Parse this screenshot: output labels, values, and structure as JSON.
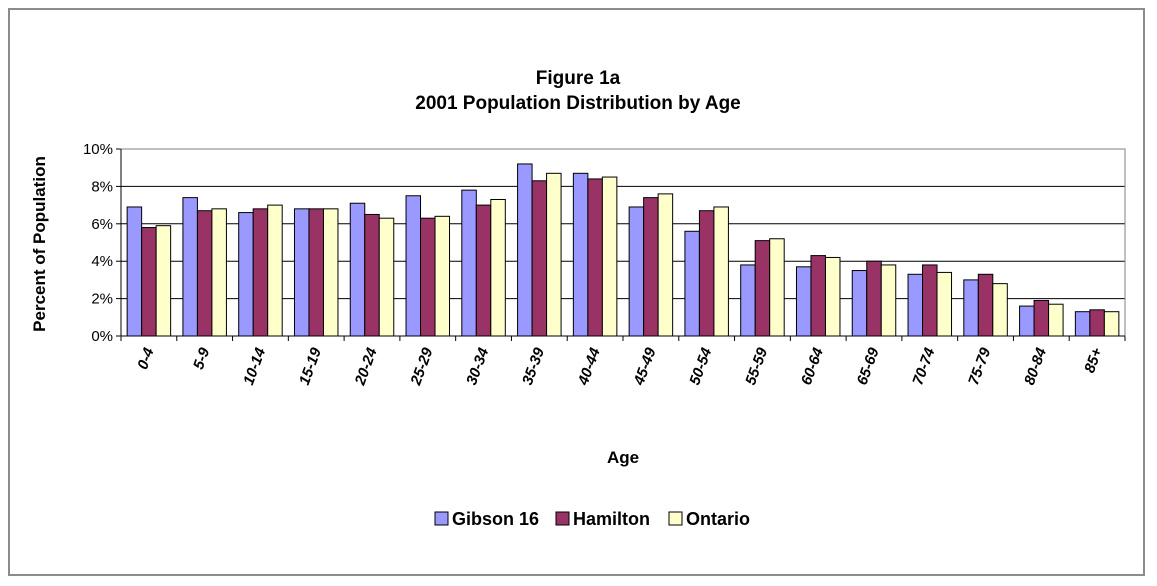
{
  "chart_data": {
    "type": "bar",
    "title": "Figure 1a",
    "subtitle": "2001 Population Distribution by Age",
    "xlabel": "Age",
    "ylabel": "Percent of Population",
    "ylim": [
      0,
      10
    ],
    "yticks": [
      "0%",
      "2%",
      "4%",
      "6%",
      "8%",
      "10%"
    ],
    "grid": true,
    "legend_position": "bottom",
    "categories": [
      "0-4",
      "5-9",
      "10-14",
      "15-19",
      "20-24",
      "25-29",
      "30-34",
      "35-39",
      "40-44",
      "45-49",
      "50-54",
      "55-59",
      "60-64",
      "65-69",
      "70-74",
      "75-79",
      "80-84",
      "85+"
    ],
    "series": [
      {
        "name": "Gibson 16",
        "color": "#9999ff",
        "values": [
          6.9,
          7.4,
          6.6,
          6.8,
          7.1,
          7.5,
          7.8,
          9.2,
          8.7,
          6.9,
          5.6,
          3.8,
          3.7,
          3.5,
          3.3,
          3.0,
          1.6,
          1.3
        ]
      },
      {
        "name": "Hamilton",
        "color": "#993366",
        "values": [
          5.8,
          6.7,
          6.8,
          6.8,
          6.5,
          6.3,
          7.0,
          8.3,
          8.4,
          7.4,
          6.7,
          5.1,
          4.3,
          4.0,
          3.8,
          3.3,
          1.9,
          1.4
        ]
      },
      {
        "name": "Ontario",
        "color": "#ffffcc",
        "values": [
          5.9,
          6.8,
          7.0,
          6.8,
          6.3,
          6.4,
          7.3,
          8.7,
          8.5,
          7.6,
          6.9,
          5.2,
          4.2,
          3.8,
          3.4,
          2.8,
          1.7,
          1.3
        ]
      }
    ]
  }
}
